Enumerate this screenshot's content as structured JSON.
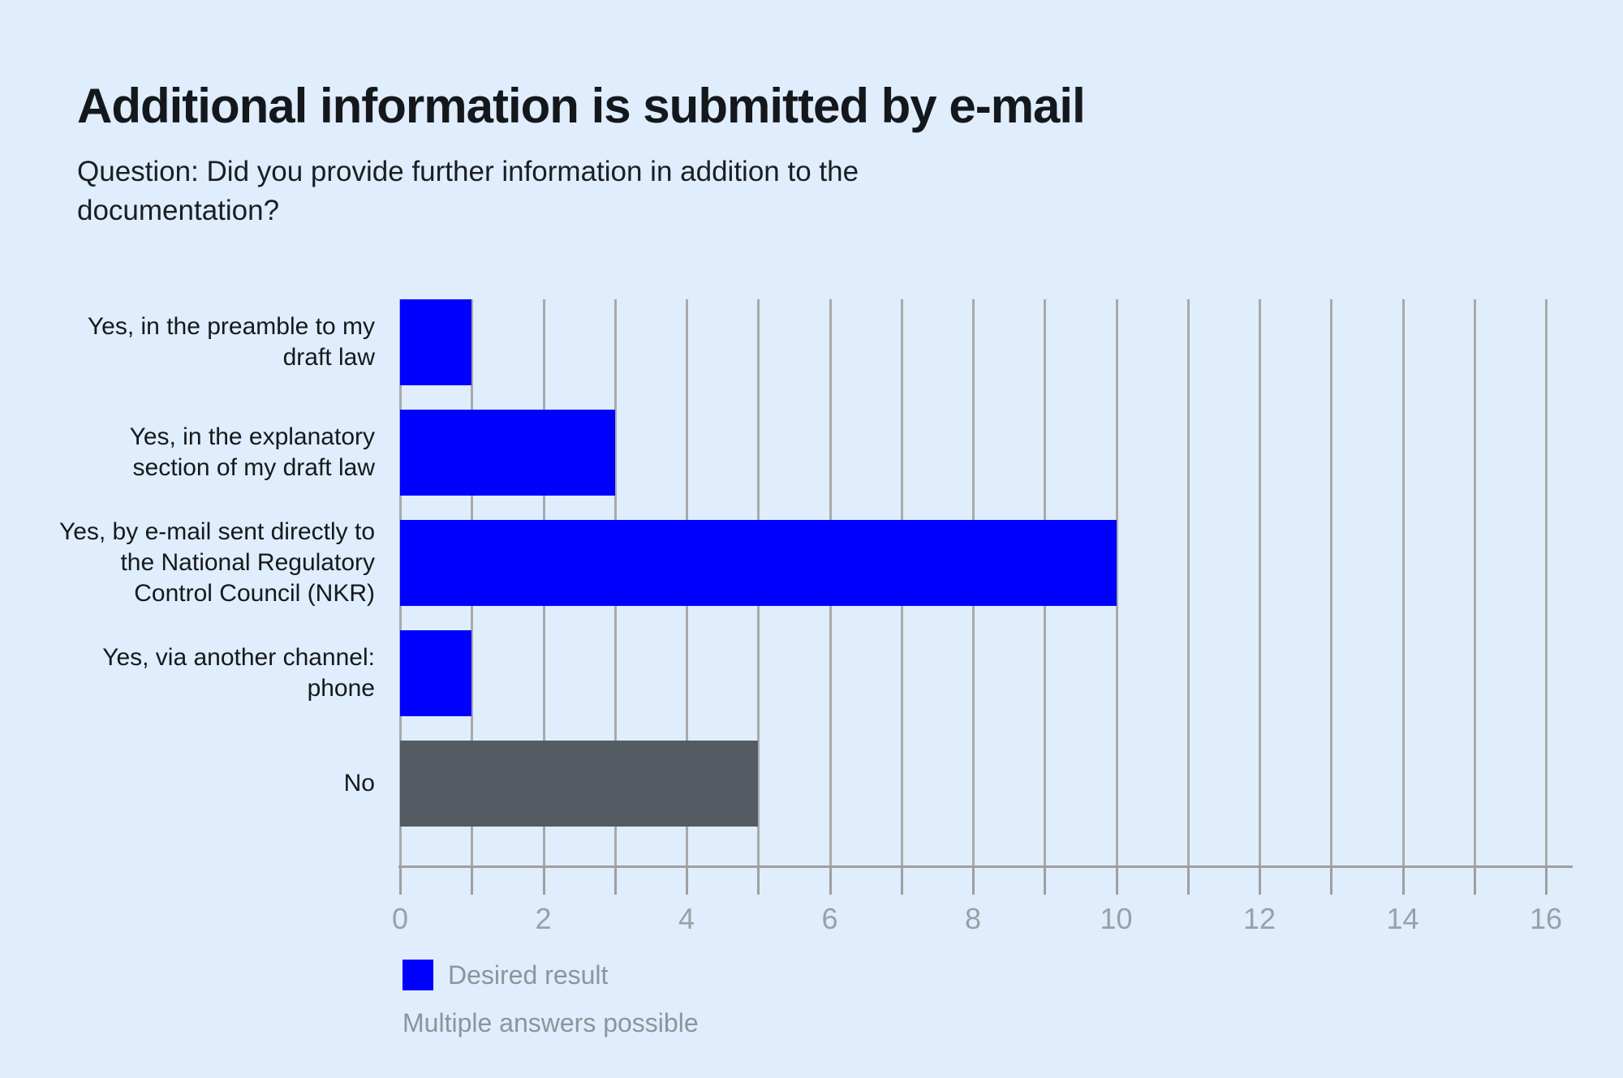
{
  "header": {
    "title": "Additional information is submitted by e-mail",
    "subtitle": "Question: Did you provide further information in addition to the documentation?"
  },
  "chart_data": {
    "type": "bar",
    "orientation": "horizontal",
    "title": "Additional information is submitted by e-mail",
    "subtitle": "Question: Did you provide further information in addition to the documentation?",
    "categories": [
      "Yes, in the preamble to my draft law",
      "Yes, in the explanatory section of my draft law",
      "Yes, by e-mail sent directly to the National Regulatory Control Council (NKR)",
      "Yes, via another channel: phone",
      "No"
    ],
    "values": [
      1,
      3,
      10,
      1,
      5
    ],
    "bar_colors": [
      "#0000ff",
      "#0000ff",
      "#0000ff",
      "#0000ff",
      "#555b63"
    ],
    "xlabel": "",
    "ylabel": "",
    "xlim": [
      0,
      16
    ],
    "x_major_ticks": [
      0,
      2,
      4,
      6,
      8,
      10,
      12,
      14,
      16
    ],
    "x_minor_grid_step": 1,
    "grid": true,
    "legend_position": "bottom-left",
    "legend": [
      {
        "label": "Desired result",
        "color": "#0000ff"
      }
    ],
    "footnote": "Multiple answers possible"
  },
  "legend": {
    "desired_result_label": "Desired result"
  },
  "footnote": "Multiple answers possible",
  "colors": {
    "background": "#dfedfc",
    "accent_blue": "#0000ff",
    "neutral_bar_gray": "#555b63",
    "gridline": "#a9a9a9",
    "axis": "#9f9f9f",
    "tick_label": "#99a0a8",
    "muted_text": "#8d949c",
    "title_text": "#14181c"
  }
}
